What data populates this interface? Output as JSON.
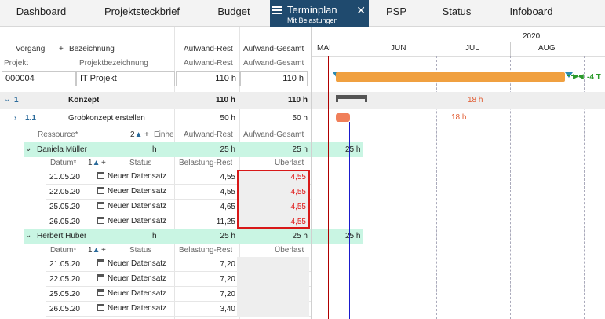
{
  "tabs": [
    {
      "label": "Dashboard"
    },
    {
      "label": "Projektsteckbrief"
    },
    {
      "label": "Budget"
    },
    {
      "label": "Terminplan",
      "sub": "Mit Belastungen"
    },
    {
      "label": "PSP"
    },
    {
      "label": "Status"
    },
    {
      "label": "Infoboard"
    }
  ],
  "header": {
    "vorgang": "Vorgang",
    "plus": "+",
    "bezeichnung": "Bezeichnung",
    "aufwand_rest": "Aufwand-Rest",
    "aufwand_gesamt": "Aufwand-Gesamt",
    "projekt": "Projekt",
    "projektbezeichnung": "Projektbezeichnung"
  },
  "project": {
    "id": "000004",
    "name": "IT Projekt",
    "rest": "110 h",
    "gesamt": "110 h"
  },
  "konzept": {
    "num": "1",
    "name": "Konzept",
    "rest": "110 h",
    "gesamt": "110 h"
  },
  "grob": {
    "num": "1.1",
    "name": "Grobkonzept erstellen",
    "rest": "50 h",
    "gesamt": "50 h"
  },
  "resource_header": {
    "ressource": "Ressource*",
    "sort_num": "2",
    "plus": "+",
    "einheit": "Einhe",
    "rest": "Aufwand-Rest",
    "gesamt": "Aufwand-Gesamt"
  },
  "resources": [
    {
      "name": "Daniela Müller",
      "unit": "h",
      "rest": "25 h",
      "gesamt": "25 h",
      "gantt": "25 h",
      "sub": {
        "datum": "Datum*",
        "sort_num": "1",
        "plus": "+",
        "status": "Status",
        "belastung": "Belastung-Rest",
        "ueberlast": "Überlast"
      },
      "rows": [
        {
          "date": "21.05.20",
          "status": "Neuer Datensatz",
          "belastung": "4,55",
          "ueberlast": "4,55"
        },
        {
          "date": "22.05.20",
          "status": "Neuer Datensatz",
          "belastung": "4,55",
          "ueberlast": "4,55"
        },
        {
          "date": "25.05.20",
          "status": "Neuer Datensatz",
          "belastung": "4,65",
          "ueberlast": "4,55"
        },
        {
          "date": "26.05.20",
          "status": "Neuer Datensatz",
          "belastung": "11,25",
          "ueberlast": "4,55"
        }
      ]
    },
    {
      "name": "Herbert Huber",
      "unit": "h",
      "rest": "25 h",
      "gesamt": "25 h",
      "gantt": "25 h",
      "sub": {
        "datum": "Datum*",
        "sort_num": "1",
        "plus": "+",
        "status": "Status",
        "belastung": "Belastung-Rest",
        "ueberlast": "Überlast"
      },
      "rows": [
        {
          "date": "21.05.20",
          "status": "Neuer Datensatz",
          "belastung": "7,20",
          "ueberlast": ""
        },
        {
          "date": "22.05.20",
          "status": "Neuer Datensatz",
          "belastung": "7,20",
          "ueberlast": ""
        },
        {
          "date": "25.05.20",
          "status": "Neuer Datensatz",
          "belastung": "7,20",
          "ueberlast": ""
        },
        {
          "date": "26.05.20",
          "status": "Neuer Datensatz",
          "belastung": "3,40",
          "ueberlast": ""
        }
      ]
    }
  ],
  "gantt": {
    "year": "2020",
    "months": [
      "MAI",
      "JUN",
      "JUL",
      "AUG"
    ],
    "project_delta": "-4 T",
    "konzept_label": "18 h",
    "grob_label": "18 h",
    "colors": {
      "project_bar": "#f0a040",
      "summary_bar": "#555555",
      "task_bar": "#f07f5a",
      "today_line": "#b00000",
      "status_line": "#1a1acc",
      "delta": "#2a9a2a"
    }
  }
}
